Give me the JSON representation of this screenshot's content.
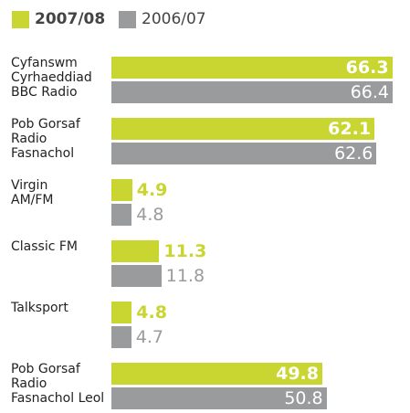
{
  "chart_data": {
    "type": "bar",
    "orientation": "horizontal",
    "categories": [
      "Cyfanswm\nCyrhaeddiad\nBBC Radio",
      "Pob Gorsaf\nRadio\nFasnachol",
      "Virgin\nAM/FM",
      "Classic FM",
      "Talksport",
      "Pob Gorsaf\nRadio\nFasnachol Leol"
    ],
    "series": [
      {
        "name": "2007/08",
        "color": "#c9d530",
        "values": [
          66.3,
          62.1,
          4.9,
          11.3,
          4.8,
          49.8
        ]
      },
      {
        "name": "2006/07",
        "color": "#9a9b9d",
        "values": [
          66.4,
          62.6,
          4.8,
          11.8,
          4.7,
          50.8
        ]
      }
    ],
    "legend": "top-left"
  }
}
